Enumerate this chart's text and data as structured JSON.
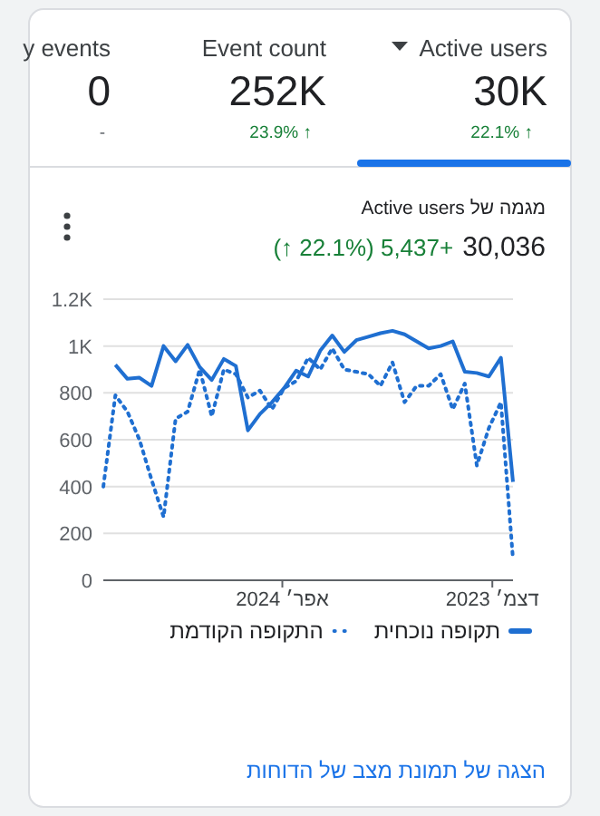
{
  "chart_data": {
    "type": "line",
    "title": "מגמה של Active users",
    "x": [
      "2024-07-14",
      "2024-07-07",
      "2024-06-30",
      "2024-06-23",
      "2024-06-16",
      "2024-06-09",
      "2024-06-02",
      "2024-05-26",
      "2024-05-19",
      "2024-05-12",
      "2024-05-05",
      "2024-04-28",
      "2024-04-21",
      "2024-04-14",
      "2024-04-07",
      "2024-03-31",
      "2024-03-24",
      "2024-03-17",
      "2024-03-10",
      "2024-03-03",
      "2024-02-25",
      "2024-02-18",
      "2024-02-11",
      "2024-02-04",
      "2024-01-28",
      "2024-01-21",
      "2024-01-14",
      "2024-01-07",
      "2023-12-31",
      "2023-12-24",
      "2023-12-17",
      "2023-12-10",
      "2023-12-03",
      "2023-11-26",
      "2023-11-19"
    ],
    "series": [
      {
        "name": "תקופה נוכחית",
        "color": "#1f6fd1",
        "line_style": "solid",
        "values": [
          null,
          920,
          860,
          865,
          830,
          1000,
          935,
          1005,
          910,
          855,
          945,
          915,
          640,
          710,
          760,
          820,
          895,
          870,
          980,
          1045,
          975,
          1025,
          1040,
          1055,
          1065,
          1050,
          1020,
          990,
          1000,
          1020,
          890,
          885,
          870,
          950,
          420
        ]
      },
      {
        "name": "התקופה הקודמת",
        "color": "#1f6fd1",
        "line_style": "dotted",
        "values": [
          400,
          790,
          720,
          600,
          430,
          270,
          690,
          720,
          900,
          700,
          900,
          880,
          780,
          810,
          730,
          820,
          850,
          950,
          900,
          990,
          900,
          890,
          880,
          830,
          930,
          760,
          830,
          830,
          880,
          730,
          840,
          490,
          650,
          760,
          90
        ]
      }
    ],
    "xlim": [
      "2024-07-14",
      "2023-11-19"
    ],
    "xticks": [
      {
        "value": "2024-04-01",
        "label": "אפר׳ 2024"
      },
      {
        "value": "2023-12-01",
        "label": "דצמ׳ 2023"
      }
    ],
    "ylim": [
      0,
      1200
    ],
    "yticks": [
      0,
      200,
      400,
      600,
      800,
      {
        "value": 1000,
        "label": "1K"
      },
      {
        "value": 1200,
        "label": "1.2K"
      }
    ],
    "grid": "y",
    "legend": "bottom",
    "annotations": [
      "y events",
      "0",
      "-",
      "Event count",
      "252K",
      "23.9% ↑",
      "Active users",
      "30K",
      "22.1% ↑",
      "30,036",
      "+5,437 (22.1% ↑)",
      "הצגה של תמונת מצב של הדוחות"
    ]
  }
}
